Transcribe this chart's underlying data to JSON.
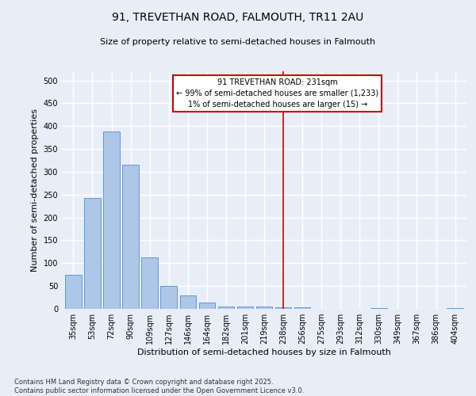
{
  "title1": "91, TREVETHAN ROAD, FALMOUTH, TR11 2AU",
  "title2": "Size of property relative to semi-detached houses in Falmouth",
  "xlabel": "Distribution of semi-detached houses by size in Falmouth",
  "ylabel": "Number of semi-detached properties",
  "bar_color": "#aec6e8",
  "bar_edge_color": "#5b9bd5",
  "categories": [
    "35sqm",
    "53sqm",
    "72sqm",
    "90sqm",
    "109sqm",
    "127sqm",
    "146sqm",
    "164sqm",
    "182sqm",
    "201sqm",
    "219sqm",
    "238sqm",
    "256sqm",
    "275sqm",
    "293sqm",
    "312sqm",
    "330sqm",
    "349sqm",
    "367sqm",
    "386sqm",
    "404sqm"
  ],
  "values": [
    75,
    243,
    388,
    315,
    113,
    50,
    30,
    14,
    6,
    5,
    5,
    4,
    3,
    0,
    0,
    0,
    2,
    0,
    0,
    0,
    1
  ],
  "marker_x": "238sqm",
  "annotation_title": "91 TREVETHAN ROAD: 231sqm",
  "annotation_line1": "← 99% of semi-detached houses are smaller (1,233)",
  "annotation_line2": "1% of semi-detached houses are larger (15) →",
  "vline_color": "#cc0000",
  "annotation_box_color": "#ffffff",
  "annotation_box_edge": "#cc0000",
  "ylim": [
    0,
    520
  ],
  "yticks": [
    0,
    50,
    100,
    150,
    200,
    250,
    300,
    350,
    400,
    450,
    500
  ],
  "footer": "Contains HM Land Registry data © Crown copyright and database right 2025.\nContains public sector information licensed under the Open Government Licence v3.0.",
  "background_color": "#e8eef8",
  "grid_color": "#ffffff",
  "title_fontsize": 10,
  "subtitle_fontsize": 8,
  "axis_label_fontsize": 8,
  "tick_fontsize": 7,
  "annotation_fontsize": 7,
  "footer_fontsize": 6
}
